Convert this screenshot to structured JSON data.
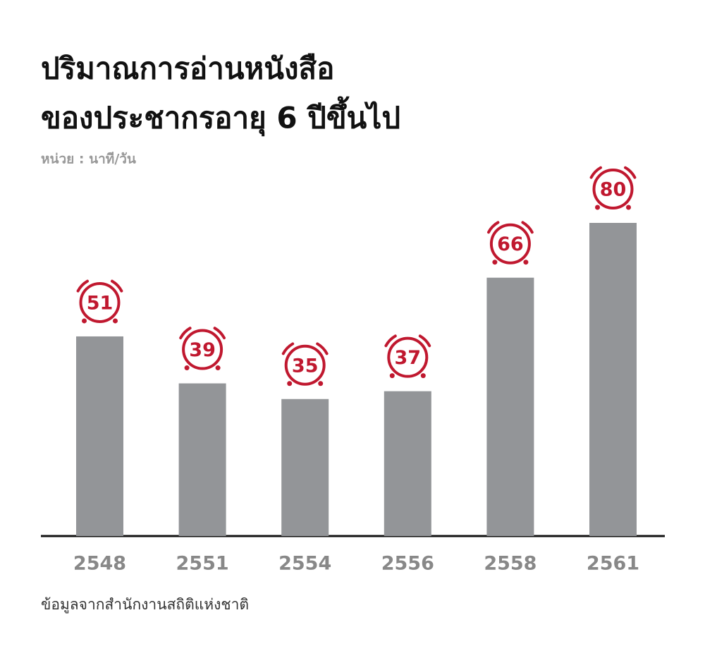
{
  "chart_data": {
    "type": "bar",
    "title": [
      "ปริมาณการอ่านหนังสือ",
      "ของประชากรอายุ 6 ปีขึ้นไป"
    ],
    "subtitle": "หน่วย : นาที/วัน",
    "source": "ข้อมูลจากสำนักงานสถิติแห่งชาติ",
    "categories": [
      "2548",
      "2551",
      "2554",
      "2556",
      "2558",
      "2561"
    ],
    "values": [
      51,
      39,
      35,
      37,
      66,
      80
    ],
    "color": "#939598",
    "label_color": "#c0182f"
  }
}
